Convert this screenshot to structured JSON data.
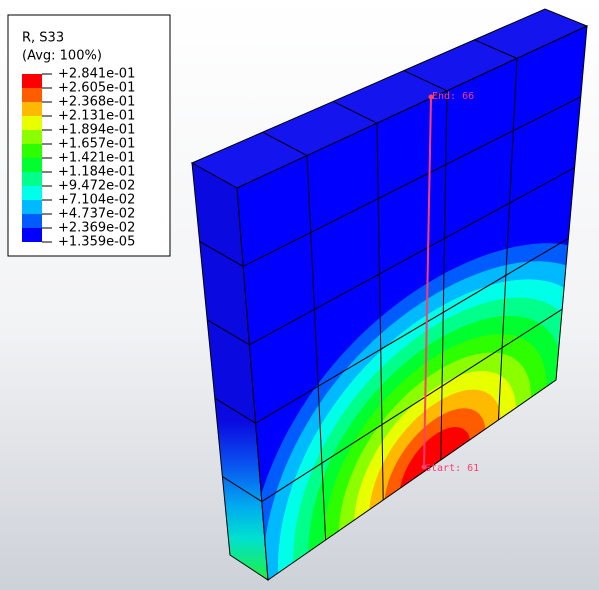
{
  "legend": {
    "title": "R, S33",
    "subtitle": "(Avg: 100%)",
    "labels": [
      "+2.841e-01",
      "+2.605e-01",
      "+2.368e-01",
      "+2.131e-01",
      "+1.894e-01",
      "+1.657e-01",
      "+1.421e-01",
      "+1.184e-01",
      "+9.472e-02",
      "+7.104e-02",
      "+4.737e-02",
      "+2.369e-02",
      "+1.359e-05"
    ],
    "colors": [
      "#ff0000",
      "#ff5c00",
      "#ffb900",
      "#e8ff00",
      "#8bff00",
      "#2eff00",
      "#00ff2e",
      "#00ff8b",
      "#00ffe8",
      "#00b9ff",
      "#005cff",
      "#0000ff"
    ]
  },
  "annotations": {
    "end": "End: 66",
    "start": "Start: 61"
  }
}
